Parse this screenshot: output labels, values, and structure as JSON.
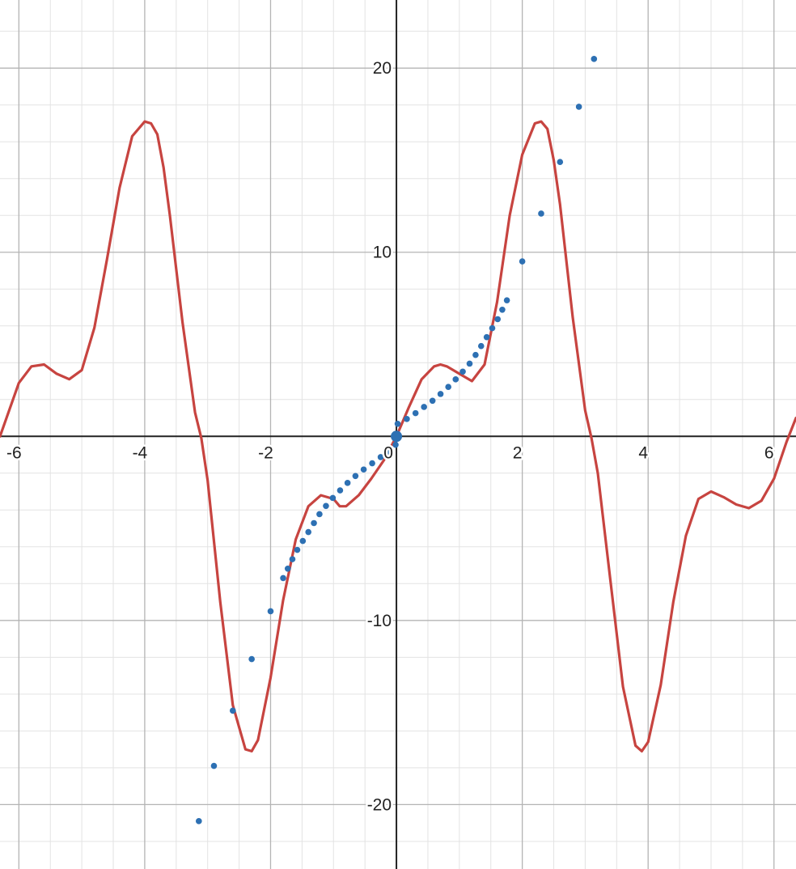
{
  "chart_data": {
    "type": "line",
    "xlim": [
      -6.3,
      6.35
    ],
    "ylim": [
      -23.5,
      23.7
    ],
    "grid": true,
    "major_step": {
      "x": 2,
      "y": 10
    },
    "minor_step": {
      "x": 0.5,
      "y": 2
    },
    "x_ticks": [
      {
        "value": -6,
        "label": "-6"
      },
      {
        "value": -4,
        "label": "-4"
      },
      {
        "value": -2,
        "label": "-2"
      },
      {
        "value": 0,
        "label": "0"
      },
      {
        "value": 2,
        "label": "2"
      },
      {
        "value": 4,
        "label": "4"
      },
      {
        "value": 6,
        "label": "6"
      }
    ],
    "y_ticks": [
      {
        "value": 20,
        "label": "20"
      },
      {
        "value": 10,
        "label": "10"
      },
      {
        "value": -10,
        "label": "-10"
      },
      {
        "value": -20,
        "label": "-20"
      }
    ],
    "series": [
      {
        "style": "solid",
        "color": "#c74440",
        "x": [
          -6.3,
          -6.0,
          -5.8,
          -5.6,
          -5.4,
          -5.2,
          -5.0,
          -4.8,
          -4.6,
          -4.4,
          -4.2,
          -4.0,
          -3.9,
          -3.8,
          -3.7,
          -3.6,
          -3.4,
          -3.2,
          -3.1,
          -3.0,
          -2.8,
          -2.6,
          -2.4,
          -2.3,
          -2.2,
          -2.0,
          -1.8,
          -1.6,
          -1.4,
          -1.2,
          -1.0,
          -0.9,
          -0.8,
          -0.6,
          -0.4,
          -0.2,
          0.0,
          0.2,
          0.4,
          0.6,
          0.7,
          0.8,
          1.0,
          1.2,
          1.4,
          1.6,
          1.8,
          2.0,
          2.2,
          2.3,
          2.4,
          2.5,
          2.6,
          2.8,
          3.0,
          3.1,
          3.2,
          3.4,
          3.6,
          3.8,
          3.9,
          4.0,
          4.2,
          4.4,
          4.6,
          4.8,
          5.0,
          5.2,
          5.4,
          5.6,
          5.8,
          6.0,
          6.2,
          6.35
        ],
        "y": [
          0.0,
          2.9,
          3.8,
          3.9,
          3.4,
          3.1,
          3.6,
          5.9,
          9.6,
          13.5,
          16.3,
          17.1,
          17.0,
          16.4,
          14.6,
          12.0,
          6.2,
          1.3,
          -0.1,
          -2.4,
          -9.0,
          -14.6,
          -17.0,
          -17.1,
          -16.5,
          -13.1,
          -8.9,
          -5.6,
          -3.8,
          -3.2,
          -3.4,
          -3.8,
          -3.8,
          -3.2,
          -2.3,
          -1.3,
          0.0,
          1.6,
          3.1,
          3.8,
          3.9,
          3.8,
          3.4,
          3.0,
          3.9,
          7.3,
          12.0,
          15.3,
          17.0,
          17.1,
          16.7,
          15.0,
          12.6,
          6.5,
          1.4,
          -0.1,
          -2.0,
          -7.8,
          -13.6,
          -16.8,
          -17.1,
          -16.6,
          -13.5,
          -9.0,
          -5.4,
          -3.4,
          -3.0,
          -3.3,
          -3.7,
          -3.9,
          -3.5,
          -2.3,
          -0.3,
          1.0
        ]
      },
      {
        "style": "dotted",
        "color": "#2d70b3",
        "x": [
          -3.14,
          -2.9,
          -2.6,
          -2.3,
          -2.0,
          -1.8,
          -1.6,
          -1.4,
          -1.2,
          -1.0,
          -0.8,
          -0.6,
          -0.4,
          -0.2,
          -0.02,
          0.0,
          0.02,
          0.2,
          0.4,
          0.6,
          0.8,
          1.0,
          1.2,
          1.4,
          1.6,
          1.8,
          2.0,
          2.3,
          2.6,
          2.9,
          3.14
        ],
        "y": [
          -20.9,
          -17.9,
          -14.9,
          -12.1,
          -9.5,
          -7.7,
          -6.3,
          -5.2,
          -4.1,
          -3.3,
          -2.6,
          -2.0,
          -1.5,
          -1.0,
          -0.7,
          0.0,
          0.7,
          1.0,
          1.5,
          2.0,
          2.6,
          3.3,
          4.1,
          5.2,
          6.3,
          7.7,
          9.5,
          12.1,
          14.9,
          17.9,
          20.5
        ]
      }
    ],
    "marked_point": {
      "x": 0,
      "y": 0,
      "color": "#2d70b3"
    }
  }
}
